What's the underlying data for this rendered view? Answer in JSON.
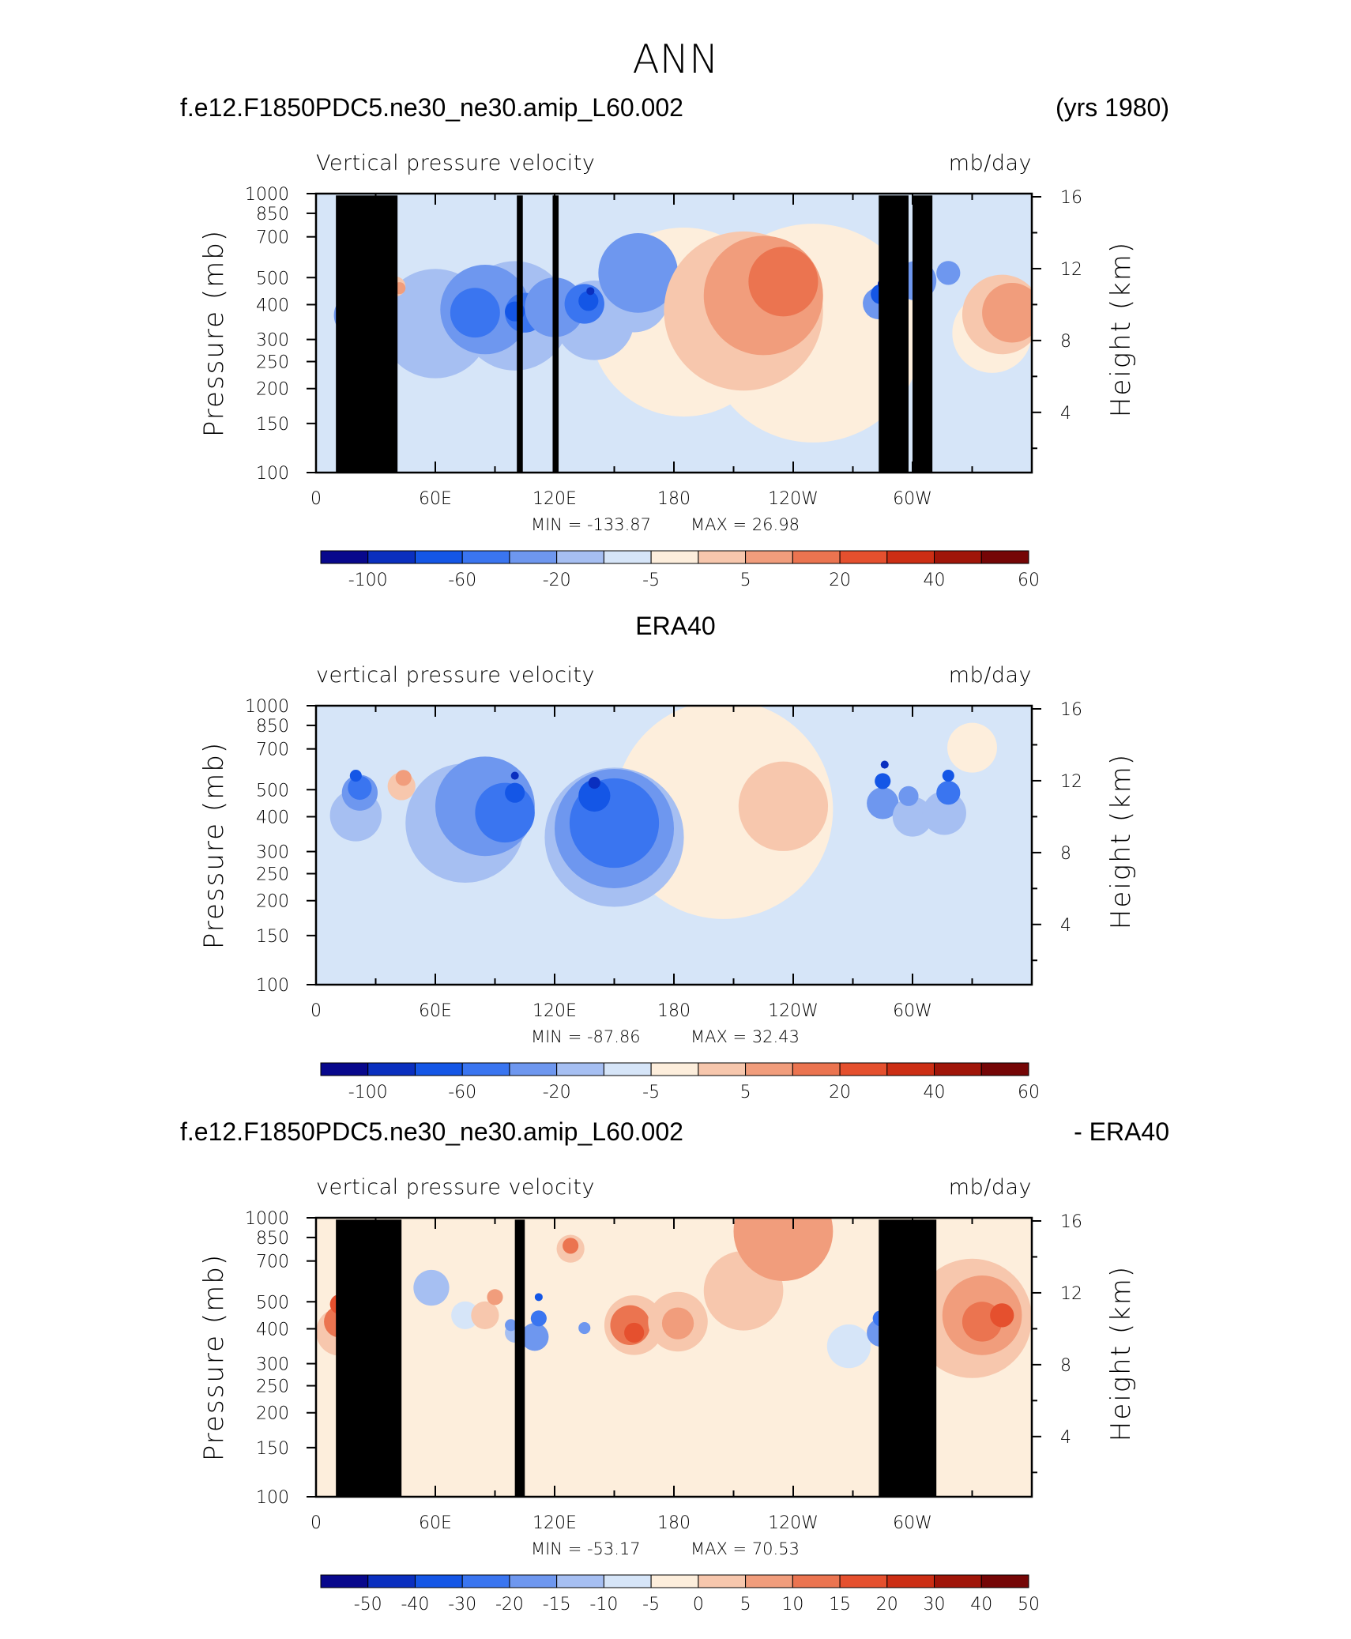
{
  "title": "ANN",
  "colors": {
    "p12": [
      "#08088c",
      "#0a2fbf",
      "#1456e6",
      "#3a75f0",
      "#6e97ef",
      "#a6bff2",
      "#d6e5f8",
      "#fdeedc",
      "#f7c7ad",
      "#f19d7c",
      "#eb7450",
      "#e5502e",
      "#cc2e14",
      "#a01509",
      "#750606"
    ],
    "p3": [
      "#08088c",
      "#0a2fbf",
      "#1456e6",
      "#3a75f0",
      "#6e97ef",
      "#a6bff2",
      "#d6e5f8",
      "#fdeedc",
      "#f7c7ad",
      "#f19d7c",
      "#eb7450",
      "#e5502e",
      "#cc2e14",
      "#a01509",
      "#750606"
    ]
  },
  "panels": [
    {
      "header_left": "f.e12.F1850PDC5.ne30_ne30.amip_L60.002",
      "header_right": "(yrs 1980)",
      "header_center": "",
      "variable": "Vertical pressure velocity",
      "units": "mb/day",
      "ylabel": "Pressure (mb)",
      "y2label": "Height (km)",
      "min_text": "MIN = -133.87",
      "max_text": "MAX =   26.98",
      "cbar_labels": [
        "-100",
        "-60",
        "-20",
        "-5",
        "5",
        "20",
        "40",
        "60"
      ]
    },
    {
      "header_left": "",
      "header_right": "",
      "header_center": "ERA40",
      "variable": "vertical pressure velocity",
      "units": "mb/day",
      "ylabel": "Pressure (mb)",
      "y2label": "Height (km)",
      "min_text": "MIN = -87.86",
      "max_text": "MAX =   32.43",
      "cbar_labels": [
        "-100",
        "-60",
        "-20",
        "-5",
        "5",
        "20",
        "40",
        "60"
      ]
    },
    {
      "header_left": "f.e12.F1850PDC5.ne30_ne30.amip_L60.002",
      "header_right": "- ERA40",
      "header_center": "",
      "variable": "vertical pressure velocity",
      "units": "mb/day",
      "ylabel": "Pressure (mb)",
      "y2label": "Height (km)",
      "min_text": "MIN = -53.17",
      "max_text": "MAX =   70.53",
      "cbar_labels": [
        "-50",
        "-40",
        "-30",
        "-20",
        "-15",
        "-10",
        "-5",
        "0",
        "5",
        "10",
        "15",
        "20",
        "30",
        "40",
        "50"
      ]
    }
  ],
  "axes": {
    "x_ticks": [
      "0",
      "60E",
      "120E",
      "180",
      "120W",
      "60W"
    ],
    "y_ticks": [
      "100",
      "150",
      "200",
      "250",
      "300",
      "400",
      "500",
      "700",
      "850",
      "1000"
    ],
    "y2_ticks": [
      "16",
      "12",
      "8",
      "4"
    ]
  },
  "chart_data": [
    {
      "type": "heatmap",
      "title": "f.e12.F1850PDC5.ne30_ne30.amip_L60.002 (yrs 1980)",
      "variable": "Vertical pressure velocity",
      "units": "mb/day",
      "x_range_deg_east": [
        0,
        360
      ],
      "y_range_mb": [
        1000,
        100
      ],
      "min": -133.87,
      "max": 26.98,
      "levels": [
        -100,
        -80,
        -60,
        -40,
        -20,
        -10,
        -5,
        0,
        5,
        10,
        20,
        30,
        40,
        50,
        60
      ],
      "features": [
        {
          "lon": 20,
          "value": -90
        },
        {
          "lon": 40,
          "value": 15
        },
        {
          "lon": 75,
          "value": -45
        },
        {
          "lon": 100,
          "value": -60
        },
        {
          "lon": 135,
          "value": -80
        },
        {
          "lon": 160,
          "value": -35
        },
        {
          "lon": 230,
          "value": 25
        },
        {
          "lon": 285,
          "value": -110
        },
        {
          "lon": 305,
          "value": -50
        },
        {
          "lon": 345,
          "value": 12
        }
      ]
    },
    {
      "type": "heatmap",
      "title": "ERA40",
      "variable": "vertical pressure velocity",
      "units": "mb/day",
      "x_range_deg_east": [
        0,
        360
      ],
      "y_range_mb": [
        1000,
        100
      ],
      "min": -87.86,
      "max": 32.43,
      "levels": [
        -100,
        -80,
        -60,
        -40,
        -20,
        -10,
        -5,
        0,
        5,
        10,
        20,
        30,
        40,
        50,
        60
      ],
      "features": [
        {
          "lon": 22,
          "value": -55
        },
        {
          "lon": 43,
          "value": 30
        },
        {
          "lon": 95,
          "value": -60
        },
        {
          "lon": 140,
          "value": -60
        },
        {
          "lon": 230,
          "value": 12
        },
        {
          "lon": 285,
          "value": -65
        },
        {
          "lon": 315,
          "value": -60
        }
      ]
    },
    {
      "type": "heatmap",
      "title": "f.e12.F1850PDC5.ne30_ne30.amip_L60.002 - ERA40",
      "variable": "vertical pressure velocity",
      "units": "mb/day",
      "x_range_deg_east": [
        0,
        360
      ],
      "y_range_mb": [
        1000,
        100
      ],
      "min": -53.17,
      "max": 70.53,
      "levels": [
        -50,
        -40,
        -30,
        -20,
        -15,
        -10,
        -5,
        0,
        5,
        10,
        15,
        20,
        30,
        40,
        50
      ],
      "features": [
        {
          "lon": 12,
          "value": 45
        },
        {
          "lon": 108,
          "value": -40
        },
        {
          "lon": 155,
          "value": 20
        },
        {
          "lon": 285,
          "value": -45
        },
        {
          "lon": 330,
          "value": 25
        }
      ]
    }
  ]
}
